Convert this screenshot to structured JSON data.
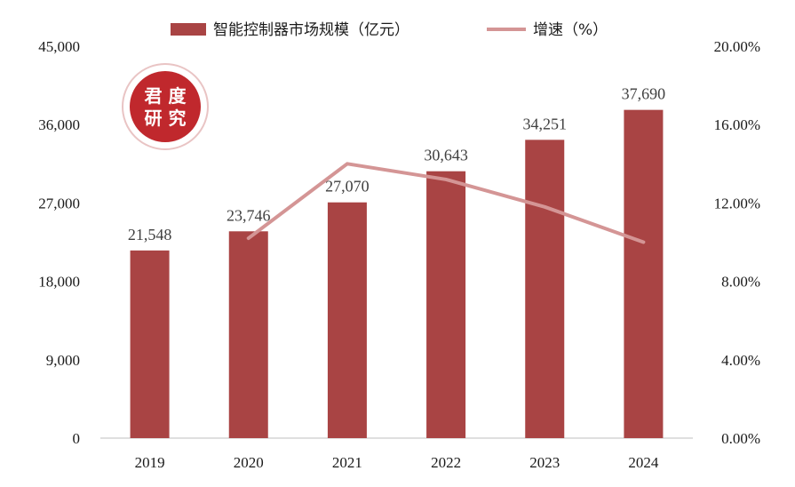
{
  "chart_data": {
    "type": "bar",
    "categories": [
      "2019",
      "2020",
      "2021",
      "2022",
      "2023",
      "2024"
    ],
    "series": [
      {
        "name": "智能控制器市场规模（亿元）",
        "type": "bar",
        "axis": "left",
        "color": "#a94444",
        "values": [
          21548,
          23746,
          27070,
          30643,
          34251,
          37690
        ],
        "data_labels": [
          "21,548",
          "23,746",
          "27,070",
          "30,643",
          "34,251",
          "37,690"
        ]
      },
      {
        "name": "增速（%）",
        "type": "line",
        "axis": "right",
        "color": "#d49595",
        "values": [
          null,
          10.2,
          14.0,
          13.2,
          11.8,
          10.0
        ]
      }
    ],
    "y_left": {
      "lim": [
        0,
        45000
      ],
      "ticks": [
        0,
        9000,
        18000,
        27000,
        36000,
        45000
      ],
      "tick_labels": [
        "0",
        "9,000",
        "18,000",
        "27,000",
        "36,000",
        "45,000"
      ]
    },
    "y_right": {
      "lim": [
        0,
        20
      ],
      "ticks": [
        0,
        4,
        8,
        12,
        16,
        20
      ],
      "tick_labels": [
        "0.00%",
        "4.00%",
        "8.00%",
        "12.00%",
        "16.00%",
        "20.00%"
      ]
    },
    "legend_position": "top-center",
    "grid": false
  },
  "watermark": {
    "text": "君度研究",
    "color": "#c0282d"
  }
}
